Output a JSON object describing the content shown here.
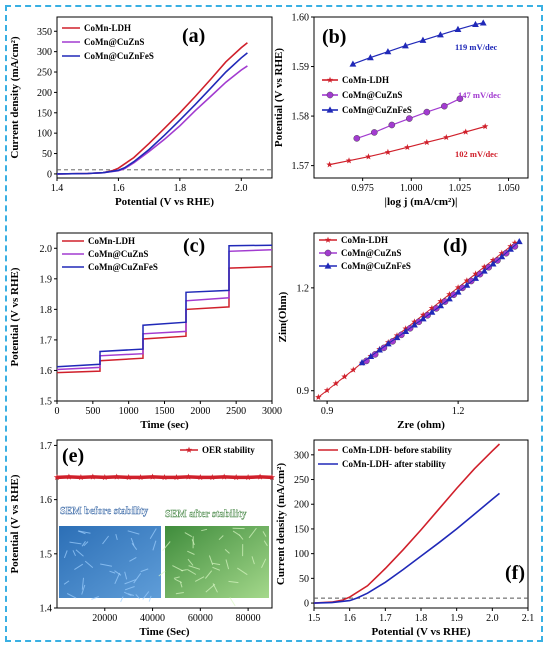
{
  "colors": {
    "red": "#d0202b",
    "purple": "#a23bd0",
    "blue": "#2029b8",
    "frame": "#39b0e3"
  },
  "chart_data": [
    {
      "panel": "(a)",
      "type": "line",
      "xlabel": "Potential (V vs RHE)",
      "ylabel": "Current density (mA/cm²)",
      "xlim": [
        1.4,
        2.1
      ],
      "ylim": [
        -10,
        385
      ],
      "xticks": [
        1.4,
        1.6,
        1.8,
        2.0
      ],
      "yticks": [
        0,
        50,
        100,
        150,
        200,
        250,
        300,
        350
      ],
      "legend_position": "top-left",
      "dashed_line_y": 10,
      "series": [
        {
          "name": "CoMn-LDH",
          "color": "red",
          "x": [
            1.4,
            1.5,
            1.55,
            1.58,
            1.6,
            1.65,
            1.7,
            1.75,
            1.8,
            1.85,
            1.9,
            1.95,
            2.0,
            2.02
          ],
          "y": [
            0,
            1,
            3,
            8,
            14,
            40,
            75,
            112,
            150,
            190,
            232,
            275,
            310,
            322
          ]
        },
        {
          "name": "CoMn@CuZnS",
          "color": "purple",
          "x": [
            1.4,
            1.5,
            1.55,
            1.6,
            1.62,
            1.65,
            1.7,
            1.75,
            1.8,
            1.85,
            1.9,
            1.95,
            2.0,
            2.02
          ],
          "y": [
            0,
            1,
            3,
            8,
            13,
            27,
            55,
            85,
            118,
            155,
            190,
            225,
            255,
            265
          ]
        },
        {
          "name": "CoMn@CuZnFeS",
          "color": "blue",
          "x": [
            1.4,
            1.5,
            1.55,
            1.6,
            1.62,
            1.65,
            1.7,
            1.75,
            1.8,
            1.85,
            1.9,
            1.95,
            2.0,
            2.02
          ],
          "y": [
            0,
            1,
            3,
            9,
            15,
            30,
            60,
            95,
            132,
            170,
            210,
            250,
            285,
            297
          ]
        }
      ]
    },
    {
      "panel": "(b)",
      "type": "scatter",
      "xlabel": "|log j (mA/cm²)|",
      "ylabel": "Potential (V vs RHE)",
      "xlim": [
        0.95,
        1.06
      ],
      "ylim": [
        1.5675,
        1.6
      ],
      "xticks": [
        0.975,
        1.0,
        1.025,
        1.05
      ],
      "yticks": [
        1.57,
        1.58,
        1.59,
        1.6
      ],
      "legend_position": "middle-left",
      "annotations": [
        "119 mV/dec",
        "147 mV/dec",
        "102 mV/dec"
      ],
      "series": [
        {
          "name": "CoMn-LDH",
          "color": "red",
          "marker": "star",
          "x": [
            0.958,
            0.968,
            0.978,
            0.988,
            0.998,
            1.008,
            1.018,
            1.028,
            1.038
          ],
          "y": [
            1.5702,
            1.571,
            1.5718,
            1.5727,
            1.5737,
            1.5747,
            1.5757,
            1.5768,
            1.5779
          ]
        },
        {
          "name": "CoMn@CuZnS",
          "color": "purple",
          "marker": "circle",
          "x": [
            0.972,
            0.981,
            0.99,
            0.999,
            1.008,
            1.017,
            1.025
          ],
          "y": [
            1.5755,
            1.5767,
            1.5782,
            1.5795,
            1.5808,
            1.582,
            1.5835
          ]
        },
        {
          "name": "CoMn@CuZnFeS",
          "color": "blue",
          "marker": "triangle",
          "x": [
            0.97,
            0.979,
            0.988,
            0.997,
            1.006,
            1.015,
            1.024,
            1.033,
            1.037
          ],
          "y": [
            1.5905,
            1.5918,
            1.593,
            1.5942,
            1.5953,
            1.5964,
            1.5975,
            1.5985,
            1.5988
          ]
        }
      ]
    },
    {
      "panel": "(c)",
      "type": "line",
      "xlabel": "Time (sec)",
      "ylabel": "Potential (V vs RHE)",
      "xlim": [
        0,
        3000
      ],
      "ylim": [
        1.5,
        2.05
      ],
      "xticks": [
        0,
        500,
        1000,
        1500,
        2000,
        2500,
        3000
      ],
      "yticks": [
        1.5,
        1.6,
        1.7,
        1.8,
        1.9,
        2.0
      ],
      "legend_position": "top-left",
      "step_times": [
        0,
        600,
        1200,
        1800,
        2400,
        3000
      ],
      "series": [
        {
          "name": "CoMn-LDH",
          "color": "red",
          "levels": [
            [
              1.593,
              1.598
            ],
            [
              1.632,
              1.64
            ],
            [
              1.703,
              1.712
            ],
            [
              1.8,
              1.808
            ],
            [
              1.935,
              1.94
            ]
          ]
        },
        {
          "name": "CoMn@CuZnS",
          "color": "purple",
          "levels": [
            [
              1.603,
              1.61
            ],
            [
              1.648,
              1.655
            ],
            [
              1.72,
              1.728
            ],
            [
              1.828,
              1.838
            ],
            [
              1.99,
              1.995
            ]
          ]
        },
        {
          "name": "CoMn@CuZnFeS",
          "color": "blue",
          "levels": [
            [
              1.612,
              1.62
            ],
            [
              1.662,
              1.67
            ],
            [
              1.748,
              1.758
            ],
            [
              1.856,
              1.862
            ],
            [
              2.008,
              2.01
            ]
          ]
        }
      ]
    },
    {
      "panel": "(d)",
      "type": "scatter",
      "xlabel": "Zre (ohm)",
      "ylabel": "Zim(Ohm)",
      "xlim": [
        0.87,
        1.36
      ],
      "ylim": [
        0.87,
        1.36
      ],
      "xticks": [
        0.9,
        1.2
      ],
      "yticks": [
        0.9,
        1.2
      ],
      "legend_position": "top-left",
      "series": [
        {
          "name": "CoMn-LDH",
          "color": "red",
          "marker": "star",
          "x": [
            0.88,
            0.9,
            0.92,
            0.94,
            0.96,
            0.98,
            1.0,
            1.02,
            1.04,
            1.06,
            1.08,
            1.1,
            1.12,
            1.14,
            1.16,
            1.18,
            1.2,
            1.22,
            1.24,
            1.26,
            1.28,
            1.3,
            1.32,
            1.33
          ],
          "y": [
            0.881,
            0.901,
            0.921,
            0.941,
            0.961,
            0.981,
            1.001,
            1.021,
            1.041,
            1.061,
            1.081,
            1.101,
            1.121,
            1.141,
            1.161,
            1.181,
            1.201,
            1.221,
            1.241,
            1.261,
            1.281,
            1.301,
            1.321,
            1.331
          ]
        },
        {
          "name": "CoMn@CuZnS",
          "color": "purple",
          "marker": "circle",
          "x": [
            0.99,
            1.01,
            1.03,
            1.05,
            1.07,
            1.09,
            1.11,
            1.13,
            1.15,
            1.17,
            1.19,
            1.21,
            1.23,
            1.25,
            1.27,
            1.29,
            1.31,
            1.33
          ],
          "y": [
            0.987,
            1.006,
            1.025,
            1.044,
            1.063,
            1.082,
            1.101,
            1.12,
            1.14,
            1.16,
            1.18,
            1.2,
            1.22,
            1.24,
            1.26,
            1.28,
            1.301,
            1.321
          ]
        },
        {
          "name": "CoMn@CuZnFeS",
          "color": "blue",
          "marker": "triangle",
          "x": [
            0.98,
            1.0,
            1.02,
            1.04,
            1.06,
            1.08,
            1.1,
            1.12,
            1.14,
            1.16,
            1.18,
            1.2,
            1.22,
            1.24,
            1.26,
            1.28,
            1.3,
            1.32,
            1.34
          ],
          "y": [
            0.982,
            1.0,
            1.019,
            1.037,
            1.055,
            1.073,
            1.092,
            1.11,
            1.129,
            1.148,
            1.168,
            1.188,
            1.208,
            1.228,
            1.249,
            1.27,
            1.291,
            1.313,
            1.335
          ]
        }
      ]
    },
    {
      "panel": "(e)",
      "type": "line",
      "xlabel": "Time (Sec)",
      "ylabel": "Potential (V vs RHE)",
      "xlim": [
        0,
        90000
      ],
      "ylim": [
        1.4,
        1.71
      ],
      "xticks": [
        20000,
        40000,
        60000,
        80000
      ],
      "yticks": [
        1.4,
        1.5,
        1.6,
        1.7
      ],
      "legend_position": "top-right",
      "series": [
        {
          "name": "OER stability",
          "color": "red",
          "marker": "star",
          "x": [
            0,
            5000,
            10000,
            15000,
            20000,
            25000,
            30000,
            35000,
            40000,
            45000,
            50000,
            55000,
            60000,
            65000,
            70000,
            75000,
            80000,
            85000,
            90000
          ],
          "y": [
            1.641,
            1.642,
            1.641,
            1.642,
            1.641,
            1.642,
            1.641,
            1.641,
            1.642,
            1.641,
            1.641,
            1.642,
            1.641,
            1.641,
            1.642,
            1.641,
            1.641,
            1.642,
            1.641
          ]
        }
      ],
      "insets": [
        "SEM before stability",
        "SEM after stability"
      ]
    },
    {
      "panel": "(f)",
      "type": "line",
      "xlabel": "Potential (V vs RHE)",
      "ylabel": "Current density (mA/cm²)",
      "xlim": [
        1.5,
        2.1
      ],
      "ylim": [
        -10,
        330
      ],
      "xticks": [
        1.5,
        1.6,
        1.7,
        1.8,
        1.9,
        2.0,
        2.1
      ],
      "yticks": [
        0,
        50,
        100,
        150,
        200,
        250,
        300
      ],
      "legend_position": "top-left",
      "dashed_line_y": 10,
      "series": [
        {
          "name": "CoMn-LDH- before stability",
          "color": "red",
          "x": [
            1.5,
            1.55,
            1.58,
            1.6,
            1.65,
            1.7,
            1.75,
            1.8,
            1.85,
            1.9,
            1.95,
            2.0,
            2.02
          ],
          "y": [
            0,
            2,
            6,
            12,
            35,
            70,
            108,
            148,
            190,
            232,
            272,
            308,
            322
          ]
        },
        {
          "name": "CoMn-LDH- after stability",
          "color": "blue",
          "x": [
            1.5,
            1.55,
            1.6,
            1.62,
            1.65,
            1.7,
            1.75,
            1.8,
            1.85,
            1.9,
            1.95,
            2.0,
            2.02
          ],
          "y": [
            0,
            1,
            5,
            10,
            20,
            42,
            68,
            95,
            122,
            150,
            180,
            210,
            222
          ]
        }
      ]
    }
  ]
}
